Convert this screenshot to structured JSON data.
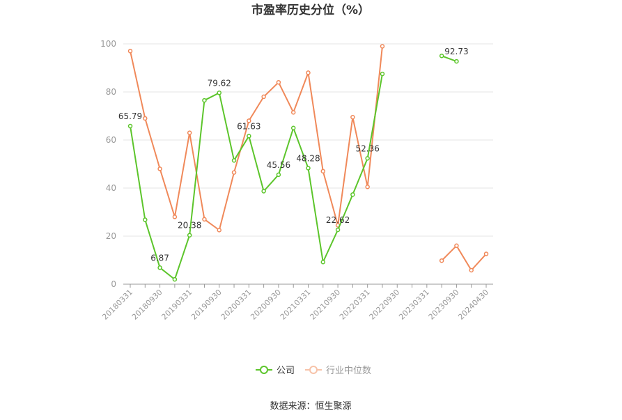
{
  "chart_data": {
    "type": "line",
    "title": "市盈率历史分位（%）",
    "ylim": [
      0,
      100
    ],
    "yticks": [
      0,
      20,
      40,
      60,
      80,
      100
    ],
    "x": [
      "20180331",
      "20180630",
      "20180930",
      "20181231",
      "20190331",
      "20190630",
      "20190930",
      "20191231",
      "20200331",
      "20200630",
      "20200930",
      "20201231",
      "20210331",
      "20210630",
      "20210930",
      "20211231",
      "20220331",
      "20220630",
      "20220930",
      "20221231",
      "20230331",
      "20230630",
      "20230930",
      "20231231",
      "20240430"
    ],
    "xtick_labels": [
      "20180331",
      "20180930",
      "20190331",
      "20190930",
      "20200331",
      "20200930",
      "20210331",
      "20210930",
      "20220331",
      "20220930",
      "20230331",
      "20230930",
      "20240430"
    ],
    "grid": true,
    "legend_position": "bottom-center",
    "series": [
      {
        "name": "公司",
        "color": "#5cc52b",
        "values": [
          65.79,
          26.8,
          6.87,
          2.0,
          20.38,
          76.5,
          79.62,
          51.5,
          61.63,
          38.7,
          45.56,
          65.0,
          48.28,
          9.2,
          22.62,
          37.3,
          52.36,
          87.5,
          null,
          null,
          null,
          95.0,
          92.73,
          null,
          null
        ],
        "labels": {
          "0": "65.79",
          "2": "6.87",
          "4": "20.38",
          "6": "79.62",
          "8": "61.63",
          "10": "45.56",
          "12": "48.28",
          "14": "22.62",
          "16": "52.36",
          "22": "92.73"
        }
      },
      {
        "name": "行业中位数",
        "color": "#f0895a",
        "values": [
          97.0,
          69.0,
          48.0,
          28.0,
          63.0,
          27.0,
          22.5,
          46.5,
          68.0,
          78.0,
          84.0,
          71.5,
          88.0,
          47.0,
          24.5,
          69.5,
          40.5,
          99.0,
          null,
          null,
          null,
          9.8,
          16.0,
          5.8,
          12.6
        ]
      }
    ]
  },
  "source_text": "数据来源：恒生聚源"
}
